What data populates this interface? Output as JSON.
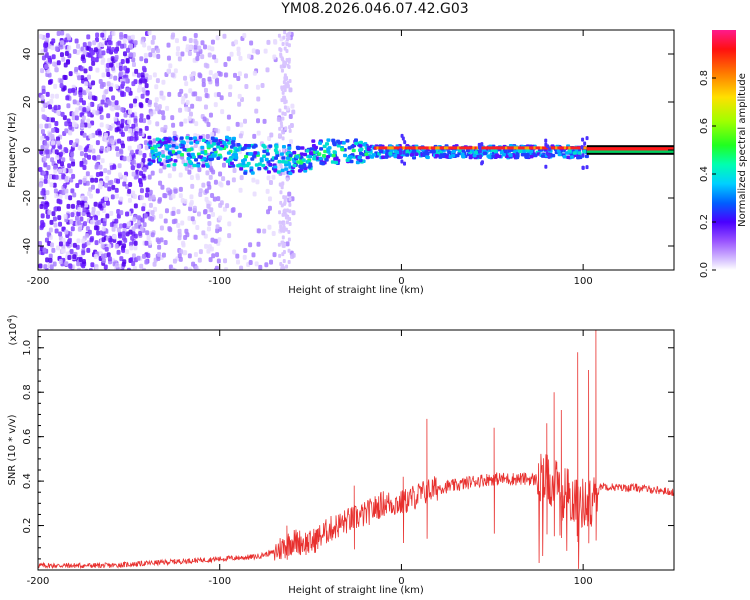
{
  "page": {
    "title": "YM08.2026.046.07.42.G03"
  },
  "colors": {
    "snr_line": "#e8302e",
    "frame": "#000000"
  },
  "chart_data": [
    {
      "type": "heatmap",
      "title": "YM08.2026.046.07.42.G03",
      "xlabel": "Height of straight line (km)",
      "ylabel": "Frequency (Hz)",
      "xlim": [
        -200,
        150
      ],
      "ylim": [
        -50,
        50
      ],
      "x_ticks": [
        -200,
        -100,
        0,
        100
      ],
      "y_ticks": [
        -40,
        -20,
        0,
        20,
        40
      ],
      "x_tick_labels": [
        "-200",
        "-100",
        "0",
        "100"
      ],
      "y_tick_labels": [
        "-40",
        "-20",
        "0",
        "20",
        "40"
      ],
      "colorbar": {
        "label": "Normalized spectral amplitude",
        "range": [
          0,
          1
        ],
        "ticks": [
          0.0,
          0.2,
          0.4,
          0.6,
          0.8
        ],
        "tick_labels": [
          "0.0",
          "0.2",
          "0.4",
          "0.6",
          "0.8"
        ]
      },
      "description_points": [
        {
          "x": -140,
          "start_band": true
        },
        {
          "x": -65,
          "scatter_cutoff": true
        },
        {
          "x": -15,
          "red_band_start": true
        },
        {
          "x": 102,
          "band_end": true
        }
      ]
    },
    {
      "type": "line",
      "xlabel": "Height of straight line (km)",
      "ylabel": "SNR (10 * v/v)",
      "scale_label": "(x10",
      "scale_exp": "4",
      "scale_close": ")",
      "xlim": [
        -200,
        150
      ],
      "ylim": [
        0,
        1.08
      ],
      "x_ticks": [
        -200,
        -100,
        0,
        100
      ],
      "y_ticks": [
        0.2,
        0.4,
        0.6,
        0.8,
        1.0
      ],
      "x_tick_labels": [
        "-200",
        "-100",
        "0",
        "100"
      ],
      "y_tick_labels": [
        "0.2",
        "0.4",
        "0.6",
        "0.8",
        "1.0"
      ],
      "series": [
        {
          "name": "SNR",
          "x": [
            -200,
            -180,
            -160,
            -140,
            -120,
            -100,
            -80,
            -70,
            -60,
            -50,
            -40,
            -30,
            -20,
            -10,
            0,
            10,
            20,
            30,
            40,
            50,
            60,
            70,
            80,
            90,
            100,
            105,
            110,
            120,
            130,
            140,
            150
          ],
          "values": [
            0.02,
            0.02,
            0.02,
            0.03,
            0.04,
            0.05,
            0.06,
            0.08,
            0.13,
            0.12,
            0.18,
            0.22,
            0.25,
            0.3,
            0.3,
            0.34,
            0.37,
            0.38,
            0.4,
            0.41,
            0.41,
            0.41,
            0.4,
            0.35,
            0.3,
            0.3,
            0.38,
            0.37,
            0.37,
            0.36,
            0.35
          ]
        }
      ],
      "spikes": [
        {
          "x": -63,
          "value": 0.2
        },
        {
          "x": -26,
          "value": 0.38
        },
        {
          "x": 1,
          "value": 0.42
        },
        {
          "x": 14,
          "value": 0.68
        },
        {
          "x": 51,
          "value": 0.64
        },
        {
          "x": 80,
          "value": 0.66
        },
        {
          "x": 84,
          "value": 0.8
        },
        {
          "x": 88,
          "value": 0.72
        },
        {
          "x": 97,
          "value": 0.98
        },
        {
          "x": 103,
          "value": 0.9
        },
        {
          "x": 107,
          "value": 1.08
        }
      ]
    }
  ]
}
